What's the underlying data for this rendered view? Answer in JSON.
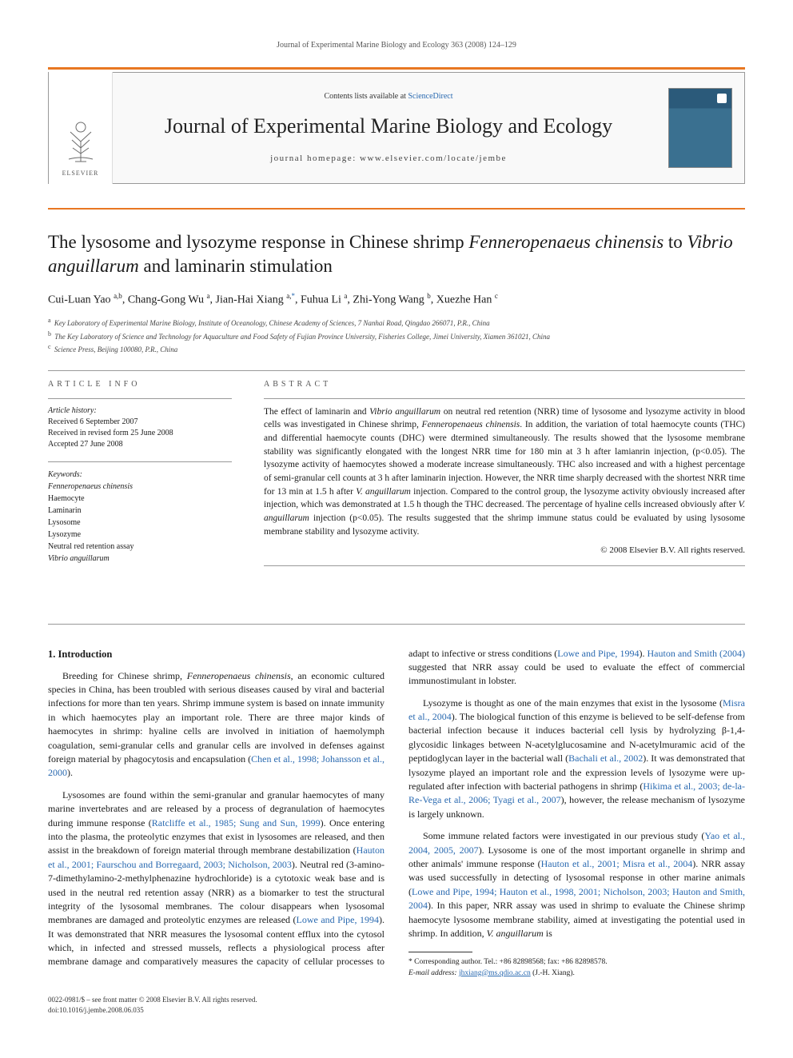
{
  "running_header": "Journal of Experimental Marine Biology and Ecology 363 (2008) 124–129",
  "masthead": {
    "contents_prefix": "Contents lists available at ",
    "contents_link": "ScienceDirect",
    "journal_name": "Journal of Experimental Marine Biology and Ecology",
    "homepage_label": "journal homepage: www.elsevier.com/locate/jembe",
    "publisher_text": "ELSEVIER"
  },
  "title_parts": {
    "a": "The lysosome and lysozyme response in Chinese shrimp ",
    "b": "Fenneropenaeus chinensis",
    "c": " to ",
    "d": "Vibrio anguillarum",
    "e": " and laminarin stimulation"
  },
  "authors_html": "Cui-Luan Yao <sup>a,b</sup>, Chang-Gong Wu <sup>a</sup>, Jian-Hai Xiang <sup>a,</sup><sup class=\"corr-star\">*</sup>, Fuhua Li <sup>a</sup>, Zhi-Yong Wang <sup>b</sup>, Xuezhe Han <sup>c</sup>",
  "affiliations": [
    {
      "sup": "a",
      "text": "Key Laboratory of Experimental Marine Biology, Institute of Oceanology, Chinese Academy of Sciences, 7 Nanhai Road, Qingdao 266071, P.R., China"
    },
    {
      "sup": "b",
      "text": "The Key Laboratory of Science and Technology for Aquaculture and Food Safety of Fujian Province University, Fisheries College, Jimei University, Xiamen 361021, China"
    },
    {
      "sup": "c",
      "text": "Science Press, Beijing 100080, P.R., China"
    }
  ],
  "article_info": {
    "heading": "ARTICLE INFO",
    "history_label": "Article history:",
    "history": [
      "Received 6 September 2007",
      "Received in revised form 25 June 2008",
      "Accepted 27 June 2008"
    ],
    "keywords_label": "Keywords:",
    "keywords": [
      {
        "text": "Fenneropenaeus chinensis",
        "italic": true
      },
      {
        "text": "Haemocyte",
        "italic": false
      },
      {
        "text": "Laminarin",
        "italic": false
      },
      {
        "text": "Lysosome",
        "italic": false
      },
      {
        "text": "Lysozyme",
        "italic": false
      },
      {
        "text": "Neutral red retention assay",
        "italic": false
      },
      {
        "text": "Vibrio anguillarum",
        "italic": true
      }
    ]
  },
  "abstract": {
    "heading": "ABSTRACT",
    "text_html": "The effect of laminarin and <span class=\"abs-ital\">Vibrio anguillarum</span> on neutral red retention (NRR) time of lysosome and lysozyme activity in blood cells was investigated in Chinese shrimp, <span class=\"abs-ital\">Fenneropenaeus chinensis</span>. In addition, the variation of total haemocyte counts (THC) and differential haemocyte counts (DHC) were dtermined simultaneously. The results showed that the lysosome membrane stability was significantly elongated with the longest NRR time for 180 min at 3 h after lamianrin injection, (p&lt;0.05). The lysozyme activity of haemocytes showed a moderate increase simultaneously. THC also increased and with a highest percentage of semi-granular cell counts at 3 h after laminarin injection. However, the NRR time sharply decreased with the shortest NRR time for 13 min at 1.5 h after <span class=\"abs-ital\">V. anguillarum</span> injection. Compared to the control group, the lysozyme activity obviously increased after injection, which was demonstrated at 1.5 h though the THC decreased. The percentage of hyaline cells increased obviously after <span class=\"abs-ital\">V. anguillarum</span> injection (p&lt;0.05). The results suggested that the shrimp immune status could be evaluated by using lysosome membrane stability and lysozyme activity.",
    "copyright": "© 2008 Elsevier B.V. All rights reserved."
  },
  "section1_heading": "1. Introduction",
  "body_paragraphs": [
    "Breeding for Chinese shrimp, <span class=\"ital\">Fenneropenaeus chinensis</span>, an economic cultured species in China, has been troubled with serious diseases caused by viral and bacterial infections for more than ten years. Shrimp immune system is based on innate immunity in which haemocytes play an important role. There are three major kinds of haemocytes in shrimp: hyaline cells are involved in initiation of haemolymph coagulation, semi-granular cells and granular cells are involved in defenses against foreign material by phagocytosis and encapsulation (<span class=\"cite\">Chen et al., 1998; Johansson et al., 2000</span>).",
    "Lysosomes are found within the semi-granular and granular haemocytes of many marine invertebrates and are released by a process of degranulation of haemocytes during immune response (<span class=\"cite\">Ratcliffe et al., 1985; Sung and Sun, 1999</span>). Once entering into the plasma, the proteolytic enzymes that exist in lysosomes are released, and then assist in the breakdown of foreign material through membrane destabilization (<span class=\"cite\">Hauton et al., 2001; Faurschou and Borregaard, 2003; Nicholson, 2003</span>). Neutral red (3-amino-7-dimethylamino-2-methylphenazine hydrochloride) is a cytotoxic weak base and is used in the neutral red retention assay (NRR) as a biomarker to test the structural integrity of the lysosomal membranes. The colour disappears when lysosomal membranes are damaged and proteolytic enzymes are released (<span class=\"cite\">Lowe and Pipe, 1994</span>). It was demonstrated that NRR measures the lysosomal content efflux into the cytosol which, in infected and stressed mussels, reflects a physiological process after membrane damage and comparatively measures the capacity of cellular processes to adapt to infective or stress conditions (<span class=\"cite\">Lowe and Pipe, 1994</span>). <span class=\"cite\">Hauton and Smith (2004)</span> suggested that NRR assay could be used to evaluate the effect of commercial immunostimulant in lobster.",
    "Lysozyme is thought as one of the main enzymes that exist in the lysosome (<span class=\"cite\">Misra et al., 2004</span>). The biological function of this enzyme is believed to be self-defense from bacterial infection because it induces bacterial cell lysis by hydrolyzing β-1,4-glycosidic linkages between N-acetylglucosamine and N-acetylmuramic acid of the peptidoglycan layer in the bacterial wall (<span class=\"cite\">Bachali et al., 2002</span>). It was demonstrated that lysozyme played an important role and the expression levels of lysozyme were up-regulated after infection with bacterial pathogens in shrimp (<span class=\"cite\">Hikima et al., 2003; de-la-Re-Vega et al., 2006; Tyagi et al., 2007</span>), however, the release mechanism of lysozyme is largely unknown.",
    "Some immune related factors were investigated in our previous study (<span class=\"cite\">Yao et al., 2004, 2005, 2007</span>). Lysosome is one of the most important organelle in shrimp and other animals' immune response (<span class=\"cite\">Hauton et al., 2001; Misra et al., 2004</span>). NRR assay was used successfully in detecting of lysosomal response in other marine animals (<span class=\"cite\">Lowe and Pipe, 1994; Hauton et al., 1998, 2001; Nicholson, 2003; Hauton and Smith, 2004</span>). In this paper, NRR assay was used in shrimp to evaluate the Chinese shrimp haemocyte lysosome membrane stability, aimed at investigating the potential used in shrimp. In addition, <span class=\"ital\">V. anguillarum</span> is"
  ],
  "footnotes": {
    "corr": "* Corresponding author. Tel.: +86 82898568; fax: +86 82898578.",
    "email_label": "E-mail address: ",
    "email": "jhxiang@ms.qdio.ac.cn",
    "email_suffix": " (J.-H. Xiang)."
  },
  "footer": {
    "line1": "0022-0981/$ – see front matter © 2008 Elsevier B.V. All rights reserved.",
    "line2": "doi:10.1016/j.jembe.2008.06.035"
  },
  "colors": {
    "orange": "#e87722",
    "link": "#2969b0",
    "text": "#1a1a1a",
    "muted": "#555"
  }
}
